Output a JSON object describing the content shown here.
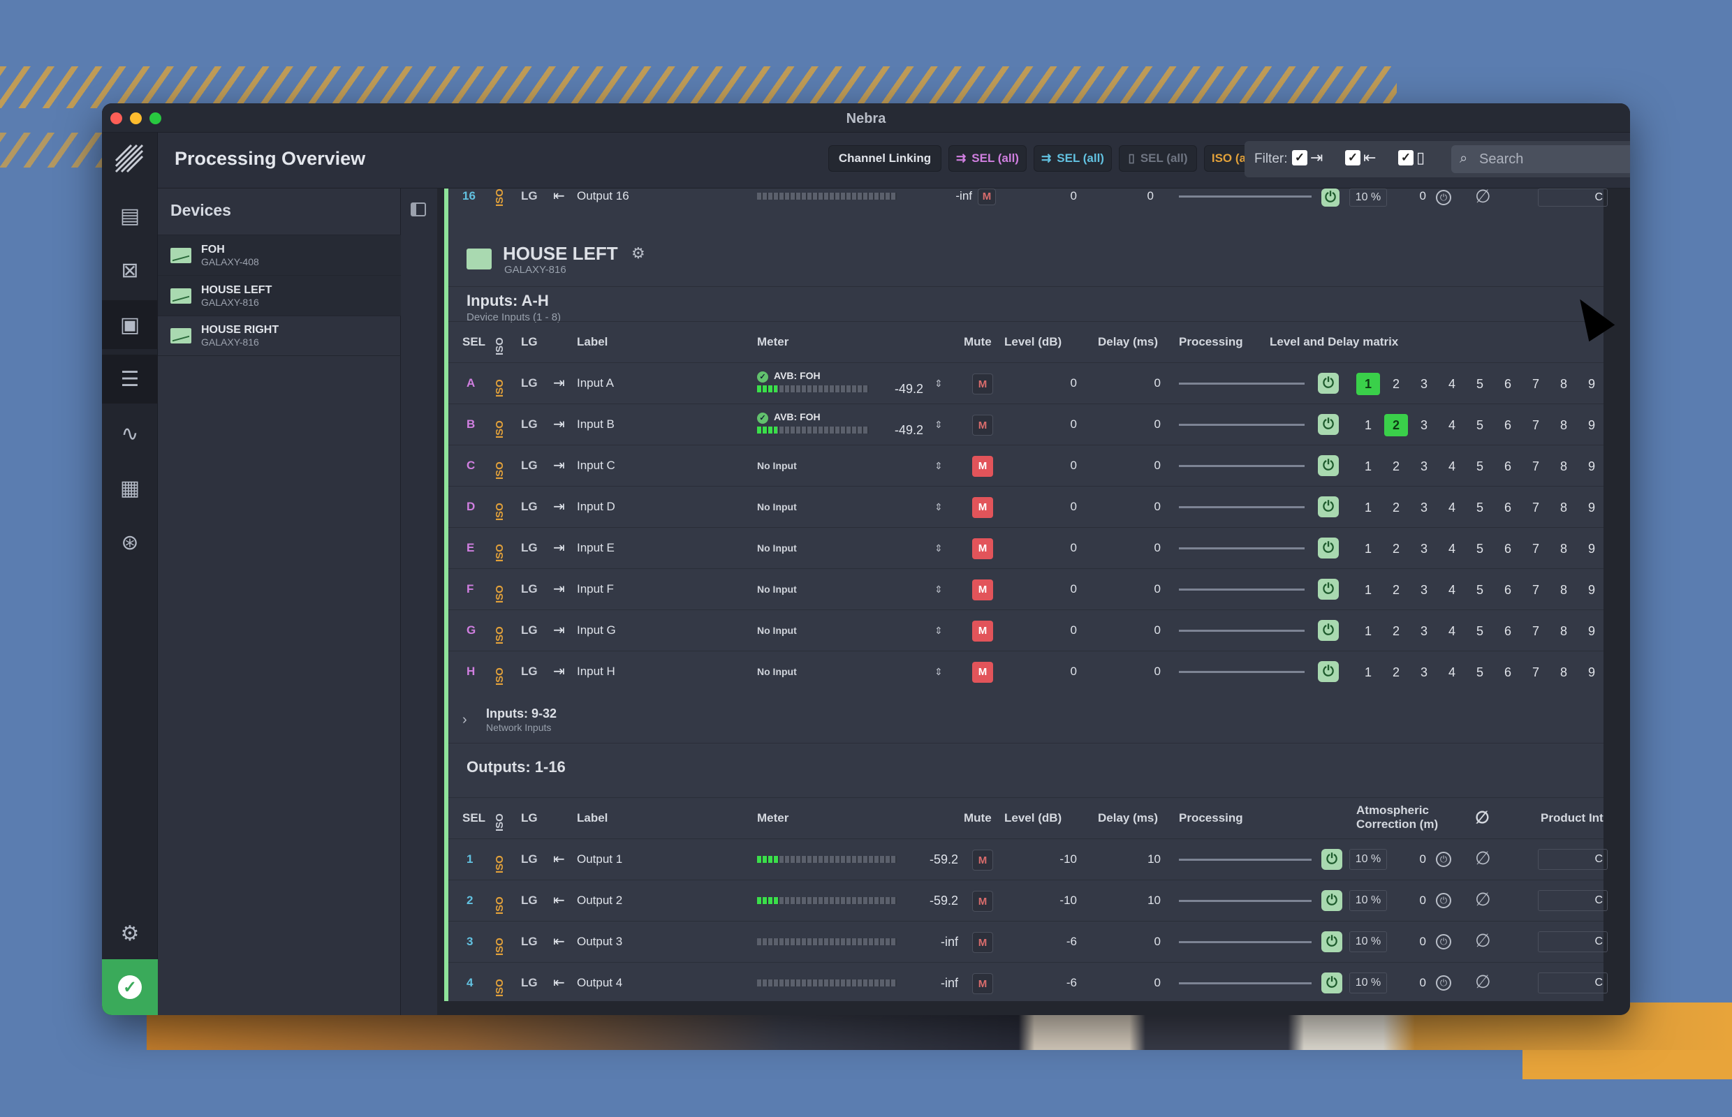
{
  "window": {
    "title": "Nebra"
  },
  "header": {
    "page_title": "Processing Overview",
    "buttons": [
      {
        "label": "Channel Linking"
      },
      {
        "label": "SEL (all)",
        "color": "#d07fe0"
      },
      {
        "label": "SEL (all)",
        "color": "#62c1e0"
      },
      {
        "label": "SEL (all)",
        "color": "#6f7582"
      },
      {
        "label": "ISO (all)",
        "color": "#e2a13a"
      }
    ],
    "filter_label": "Filter:",
    "search_placeholder": "Search"
  },
  "sidebar": {
    "title": "Devices",
    "devices": [
      {
        "name": "FOH",
        "model": "GALAXY-408"
      },
      {
        "name": "HOUSE LEFT",
        "model": "GALAXY-816"
      },
      {
        "name": "HOUSE RIGHT",
        "model": "GALAXY-816"
      }
    ]
  },
  "top_row": {
    "sel": "16",
    "iso": "ISO",
    "lg": "LG",
    "label": "Output 16",
    "value": "-inf",
    "mute": "M",
    "level": "0",
    "delay": "0",
    "atmos": "10 %",
    "atmos_val": "0",
    "product": "C"
  },
  "device": {
    "name": "HOUSE LEFT",
    "model": "GALAXY-816"
  },
  "inputs": {
    "title": "Inputs: A-H",
    "subtitle": "Device Inputs (1 - 8)",
    "columns": [
      "SEL",
      "ISO",
      "LG",
      "Label",
      "Meter",
      "Mute",
      "Level (dB)",
      "Delay (ms)",
      "Processing",
      "Level and Delay matrix"
    ],
    "matrix_labels": [
      "1",
      "2",
      "3",
      "4",
      "5",
      "6",
      "7",
      "8",
      "9"
    ],
    "rows": [
      {
        "sel": "A",
        "iso": "ISO",
        "lg": "LG",
        "label": "Input A",
        "source": "AVB: FOH",
        "value": "-49.2",
        "meter_level": 0.18,
        "muted": false,
        "level": "0",
        "delay": "0",
        "matrix_on": 1
      },
      {
        "sel": "B",
        "iso": "ISO",
        "lg": "LG",
        "label": "Input B",
        "source": "AVB: FOH",
        "value": "-49.2",
        "meter_level": 0.18,
        "muted": false,
        "level": "0",
        "delay": "0",
        "matrix_on": 2
      },
      {
        "sel": "C",
        "iso": "ISO",
        "lg": "LG",
        "label": "Input C",
        "source": "No Input",
        "value": "",
        "meter_level": 0,
        "muted": true,
        "level": "0",
        "delay": "0",
        "matrix_on": 0
      },
      {
        "sel": "D",
        "iso": "ISO",
        "lg": "LG",
        "label": "Input D",
        "source": "No Input",
        "value": "",
        "meter_level": 0,
        "muted": true,
        "level": "0",
        "delay": "0",
        "matrix_on": 0
      },
      {
        "sel": "E",
        "iso": "ISO",
        "lg": "LG",
        "label": "Input E",
        "source": "No Input",
        "value": "",
        "meter_level": 0,
        "muted": true,
        "level": "0",
        "delay": "0",
        "matrix_on": 0
      },
      {
        "sel": "F",
        "iso": "ISO",
        "lg": "LG",
        "label": "Input F",
        "source": "No Input",
        "value": "",
        "meter_level": 0,
        "muted": true,
        "level": "0",
        "delay": "0",
        "matrix_on": 0
      },
      {
        "sel": "G",
        "iso": "ISO",
        "lg": "LG",
        "label": "Input G",
        "source": "No Input",
        "value": "",
        "meter_level": 0,
        "muted": true,
        "level": "0",
        "delay": "0",
        "matrix_on": 0
      },
      {
        "sel": "H",
        "iso": "ISO",
        "lg": "LG",
        "label": "Input H",
        "source": "No Input",
        "value": "",
        "meter_level": 0,
        "muted": true,
        "level": "0",
        "delay": "0",
        "matrix_on": 0
      }
    ]
  },
  "network_inputs": {
    "title": "Inputs: 9-32",
    "subtitle": "Network Inputs"
  },
  "outputs": {
    "title": "Outputs: 1-16",
    "columns": [
      "SEL",
      "ISO",
      "LG",
      "Label",
      "Meter",
      "Mute",
      "Level (dB)",
      "Delay (ms)",
      "Processing",
      "Atmospheric Correction (m)",
      "Product Int"
    ],
    "rows": [
      {
        "sel": "1",
        "iso": "ISO",
        "lg": "LG",
        "label": "Output 1",
        "value": "-59.2",
        "meter_level": 0.15,
        "mute": "M",
        "level": "-10",
        "delay": "10",
        "atmos": "10 %",
        "atmos_val": "0",
        "product": "C"
      },
      {
        "sel": "2",
        "iso": "ISO",
        "lg": "LG",
        "label": "Output 2",
        "value": "-59.2",
        "meter_level": 0.15,
        "mute": "M",
        "level": "-10",
        "delay": "10",
        "atmos": "10 %",
        "atmos_val": "0",
        "product": "C"
      },
      {
        "sel": "3",
        "iso": "ISO",
        "lg": "LG",
        "label": "Output 3",
        "value": "-inf",
        "meter_level": 0,
        "mute": "M",
        "level": "-6",
        "delay": "0",
        "atmos": "10 %",
        "atmos_val": "0",
        "product": "C"
      },
      {
        "sel": "4",
        "iso": "ISO",
        "lg": "LG",
        "label": "Output 4",
        "value": "-inf",
        "meter_level": 0,
        "mute": "M",
        "level": "-6",
        "delay": "0",
        "atmos": "10 %",
        "atmos_val": "0",
        "product": "C"
      }
    ]
  },
  "colors": {
    "accent_green": "#8fe39a",
    "mute_red": "#e2545a",
    "iso_orange": "#e2a13a",
    "sel_input": "#d07fe0",
    "sel_output": "#62c1e0"
  }
}
